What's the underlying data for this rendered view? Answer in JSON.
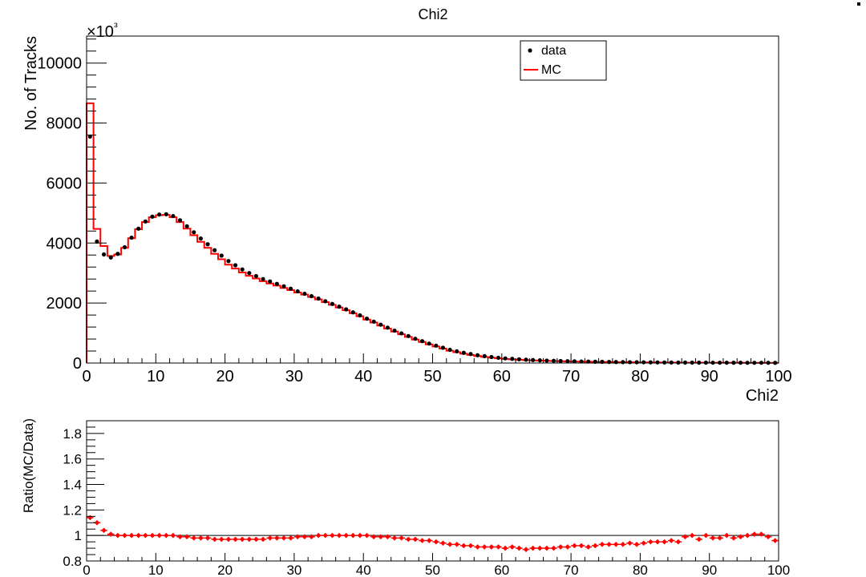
{
  "chart_data": [
    {
      "type": "line",
      "title": "Chi2",
      "xlabel": "Chi2",
      "ylabel": "No. of Tracks",
      "y_multiplier_label": "×10³",
      "xlim": [
        0,
        100
      ],
      "ylim": [
        0,
        10900
      ],
      "x_ticks": [
        "0",
        "10",
        "20",
        "30",
        "40",
        "50",
        "60",
        "70",
        "80",
        "90",
        "100"
      ],
      "y_ticks": [
        "0",
        "2000",
        "4000",
        "6000",
        "8000",
        "10000"
      ],
      "legend": {
        "placement": "top-right",
        "entries": [
          "data",
          "MC"
        ]
      },
      "series": [
        {
          "name": "data",
          "style": "points",
          "color": "#000000",
          "x": [
            0.5,
            1.5,
            2.5,
            3.5,
            4.5,
            5.5,
            6.5,
            7.5,
            8.5,
            9.5,
            10.5,
            11.5,
            12.5,
            13.5,
            14.5,
            15.5,
            16.5,
            17.5,
            18.5,
            19.5,
            20.5,
            21.5,
            22.5,
            23.5,
            24.5,
            25.5,
            26.5,
            27.5,
            28.5,
            29.5,
            30.5,
            31.5,
            32.5,
            33.5,
            34.5,
            35.5,
            36.5,
            37.5,
            38.5,
            39.5,
            40.5,
            41.5,
            42.5,
            43.5,
            44.5,
            45.5,
            46.5,
            47.5,
            48.5,
            49.5,
            50.5,
            51.5,
            52.5,
            53.5,
            54.5,
            55.5,
            56.5,
            57.5,
            58.5,
            59.5,
            60.5,
            61.5,
            62.5,
            63.5,
            64.5,
            65.5,
            66.5,
            67.5,
            68.5,
            69.5,
            70.5,
            71.5,
            72.5,
            73.5,
            74.5,
            75.5,
            76.5,
            77.5,
            78.5,
            79.5,
            80.5,
            81.5,
            82.5,
            83.5,
            84.5,
            85.5,
            86.5,
            87.5,
            88.5,
            89.5,
            90.5,
            91.5,
            92.5,
            93.5,
            94.5,
            95.5,
            96.5,
            97.5,
            98.5,
            99.5
          ],
          "values": [
            7550,
            4050,
            3620,
            3520,
            3640,
            3860,
            4180,
            4480,
            4720,
            4880,
            4950,
            4960,
            4900,
            4760,
            4560,
            4360,
            4150,
            3960,
            3760,
            3580,
            3400,
            3260,
            3120,
            3000,
            2900,
            2800,
            2720,
            2640,
            2560,
            2480,
            2390,
            2310,
            2230,
            2150,
            2060,
            1970,
            1880,
            1790,
            1690,
            1590,
            1480,
            1380,
            1280,
            1180,
            1080,
            990,
            900,
            810,
            730,
            650,
            580,
            510,
            440,
            390,
            340,
            300,
            260,
            230,
            200,
            175,
            155,
            140,
            125,
            112,
            100,
            90,
            82,
            75,
            68,
            62,
            57,
            52,
            48,
            44,
            40,
            37,
            34,
            31,
            29,
            27,
            25,
            23,
            21,
            19,
            18,
            17,
            16,
            15,
            14,
            13,
            12,
            11,
            11,
            10,
            10,
            9,
            9,
            8,
            8,
            7
          ]
        },
        {
          "name": "MC",
          "style": "step",
          "color": "#ff0000",
          "x": [
            0.5,
            1.5,
            2.5,
            3.5,
            4.5,
            5.5,
            6.5,
            7.5,
            8.5,
            9.5,
            10.5,
            11.5,
            12.5,
            13.5,
            14.5,
            15.5,
            16.5,
            17.5,
            18.5,
            19.5,
            20.5,
            21.5,
            22.5,
            23.5,
            24.5,
            25.5,
            26.5,
            27.5,
            28.5,
            29.5,
            30.5,
            31.5,
            32.5,
            33.5,
            34.5,
            35.5,
            36.5,
            37.5,
            38.5,
            39.5,
            40.5,
            41.5,
            42.5,
            43.5,
            44.5,
            45.5,
            46.5,
            47.5,
            48.5,
            49.5,
            50.5,
            51.5,
            52.5,
            53.5,
            54.5,
            55.5,
            56.5,
            57.5,
            58.5,
            59.5,
            60.5,
            61.5,
            62.5,
            63.5,
            64.5,
            65.5,
            66.5,
            67.5,
            68.5,
            69.5,
            70.5,
            71.5,
            72.5,
            73.5,
            74.5,
            75.5,
            76.5,
            77.5,
            78.5,
            79.5,
            80.5,
            81.5,
            82.5,
            83.5,
            84.5,
            85.5,
            86.5,
            87.5,
            88.5,
            89.5,
            90.5,
            91.5,
            92.5,
            93.5,
            94.5,
            95.5,
            96.5,
            97.5,
            98.5,
            99.5
          ],
          "values": [
            8660,
            4470,
            3900,
            3570,
            3620,
            3840,
            4160,
            4460,
            4700,
            4860,
            4930,
            4940,
            4860,
            4700,
            4480,
            4260,
            4040,
            3840,
            3640,
            3460,
            3280,
            3150,
            3020,
            2910,
            2820,
            2730,
            2650,
            2580,
            2500,
            2430,
            2350,
            2280,
            2200,
            2120,
            2030,
            1940,
            1850,
            1760,
            1660,
            1560,
            1450,
            1350,
            1250,
            1150,
            1050,
            960,
            870,
            780,
            700,
            620,
            550,
            480,
            410,
            360,
            310,
            270,
            235,
            205,
            180,
            158,
            138,
            124,
            110,
            98,
            88,
            80,
            73,
            67,
            61,
            56,
            51,
            47,
            43,
            40,
            36,
            33,
            31,
            28,
            26,
            24,
            22,
            20,
            19,
            17,
            16,
            15,
            14,
            13,
            12,
            12,
            11,
            10,
            10,
            9,
            9,
            8,
            8,
            8,
            7,
            7
          ]
        }
      ]
    },
    {
      "type": "scatter",
      "title": "",
      "xlabel": "",
      "ylabel": "Ratio(MC/Data)",
      "xlim": [
        0,
        100
      ],
      "ylim": [
        0.8,
        1.9
      ],
      "x_ticks": [
        "0",
        "10",
        "20",
        "30",
        "40",
        "50",
        "60",
        "70",
        "80",
        "90",
        "100"
      ],
      "y_ticks": [
        "0.8",
        "1",
        "1.2",
        "1.4",
        "1.6",
        "1.8"
      ],
      "reference_line": 1,
      "series": [
        {
          "style": "points-with-xerr",
          "color": "#ff0000",
          "x": [
            0.5,
            1.5,
            2.5,
            3.5,
            4.5,
            5.5,
            6.5,
            7.5,
            8.5,
            9.5,
            10.5,
            11.5,
            12.5,
            13.5,
            14.5,
            15.5,
            16.5,
            17.5,
            18.5,
            19.5,
            20.5,
            21.5,
            22.5,
            23.5,
            24.5,
            25.5,
            26.5,
            27.5,
            28.5,
            29.5,
            30.5,
            31.5,
            32.5,
            33.5,
            34.5,
            35.5,
            36.5,
            37.5,
            38.5,
            39.5,
            40.5,
            41.5,
            42.5,
            43.5,
            44.5,
            45.5,
            46.5,
            47.5,
            48.5,
            49.5,
            50.5,
            51.5,
            52.5,
            53.5,
            54.5,
            55.5,
            56.5,
            57.5,
            58.5,
            59.5,
            60.5,
            61.5,
            62.5,
            63.5,
            64.5,
            65.5,
            66.5,
            67.5,
            68.5,
            69.5,
            70.5,
            71.5,
            72.5,
            73.5,
            74.5,
            75.5,
            76.5,
            77.5,
            78.5,
            79.5,
            80.5,
            81.5,
            82.5,
            83.5,
            84.5,
            85.5,
            86.5,
            87.5,
            88.5,
            89.5,
            90.5,
            91.5,
            92.5,
            93.5,
            94.5,
            95.5,
            96.5,
            97.5,
            98.5,
            99.5
          ],
          "values": [
            1.14,
            1.1,
            1.04,
            1.01,
            1.0,
            1.0,
            1.0,
            1.0,
            1.0,
            1.0,
            1.0,
            1.0,
            1.0,
            0.99,
            0.99,
            0.98,
            0.98,
            0.98,
            0.97,
            0.97,
            0.97,
            0.97,
            0.97,
            0.97,
            0.97,
            0.97,
            0.98,
            0.98,
            0.98,
            0.98,
            0.99,
            0.99,
            0.99,
            1.0,
            1.0,
            1.0,
            1.0,
            1.0,
            1.0,
            1.0,
            1.0,
            0.99,
            0.99,
            0.99,
            0.98,
            0.98,
            0.97,
            0.97,
            0.96,
            0.96,
            0.95,
            0.94,
            0.93,
            0.93,
            0.92,
            0.92,
            0.91,
            0.91,
            0.91,
            0.91,
            0.9,
            0.91,
            0.9,
            0.89,
            0.9,
            0.9,
            0.9,
            0.9,
            0.91,
            0.91,
            0.92,
            0.92,
            0.91,
            0.92,
            0.93,
            0.93,
            0.93,
            0.93,
            0.94,
            0.93,
            0.94,
            0.95,
            0.95,
            0.95,
            0.96,
            0.95,
            0.99,
            1.0,
            0.97,
            1.0,
            0.98,
            0.98,
            1.0,
            0.98,
            0.99,
            1.0,
            1.01,
            1.01,
            0.99,
            0.96
          ]
        }
      ]
    }
  ]
}
